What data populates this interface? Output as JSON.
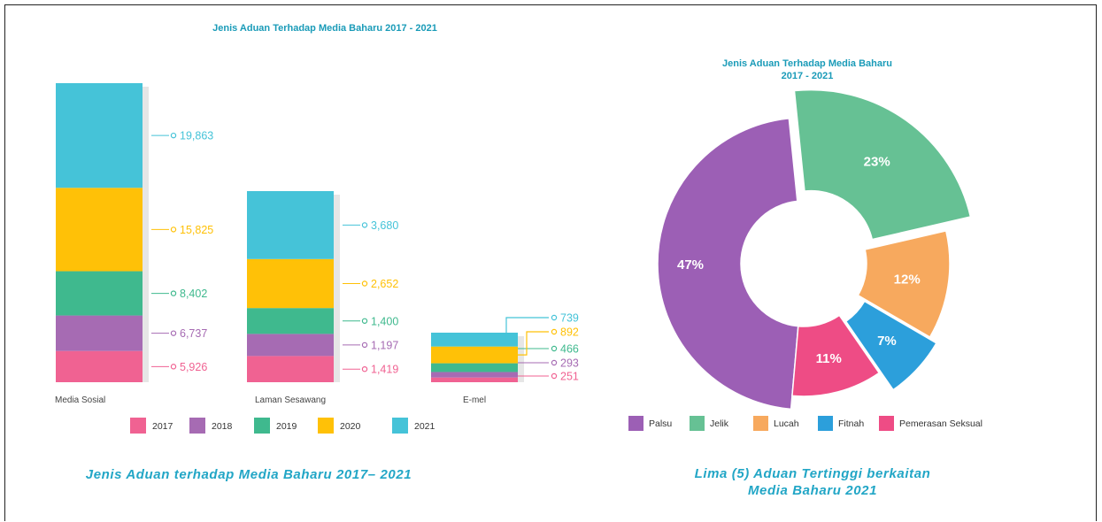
{
  "colors": {
    "2017": "#f06292",
    "2018": "#a66bb3",
    "2019": "#3fb98e",
    "2020": "#ffc107",
    "2021": "#45c3d8",
    "palsu": "#9c5fb5",
    "jelik": "#66c194",
    "lucah": "#f7a95e",
    "fitnah": "#2c9fdb",
    "pemerasan": "#ee4c85"
  },
  "bar_caption": "Jenis Aduan terhadap Media Baharu 2017– 2021",
  "pie_caption_line1": "Lima (5) Aduan Tertinggi berkaitan",
  "pie_caption_line2": "Media Baharu 2021",
  "chart_data": [
    {
      "type": "bar",
      "stacked": true,
      "title": "Jenis Aduan Terhadap Media Baharu 2017 - 2021",
      "categories": [
        "Media Sosial",
        "Laman Sesawang",
        "E-mel"
      ],
      "series": [
        {
          "name": "2017",
          "values": [
            5926,
            1419,
            251
          ],
          "labels": [
            "5,926",
            "1,419",
            "251"
          ]
        },
        {
          "name": "2018",
          "values": [
            6737,
            1197,
            293
          ],
          "labels": [
            "6,737",
            "1,197",
            "293"
          ]
        },
        {
          "name": "2019",
          "values": [
            8402,
            1400,
            466
          ],
          "labels": [
            "8,402",
            "1,400",
            "466"
          ]
        },
        {
          "name": "2020",
          "values": [
            15825,
            2652,
            892
          ],
          "labels": [
            "15,825",
            "2,652",
            "892"
          ]
        },
        {
          "name": "2021",
          "values": [
            19863,
            3680,
            739
          ],
          "labels": [
            "19,863",
            "3,680",
            "739"
          ]
        }
      ],
      "legend": [
        "2017",
        "2018",
        "2019",
        "2020",
        "2021"
      ],
      "legend_position": "bottom"
    },
    {
      "type": "pie",
      "title_line1": "Jenis Aduan Terhadap Media Baharu",
      "title_line2": "2017 - 2021",
      "slices": [
        {
          "name": "Palsu",
          "value": 47,
          "label": "47%"
        },
        {
          "name": "Jelik",
          "value": 23,
          "label": "23%"
        },
        {
          "name": "Lucah",
          "value": 12,
          "label": "12%"
        },
        {
          "name": "Fitnah",
          "value": 7,
          "label": "7%"
        },
        {
          "name": "Pemerasan Seksual",
          "value": 11,
          "label": "11%"
        }
      ],
      "legend": [
        "Palsu",
        "Jelik",
        "Lucah",
        "Fitnah",
        "Pemerasan Seksual"
      ],
      "legend_position": "bottom"
    }
  ]
}
